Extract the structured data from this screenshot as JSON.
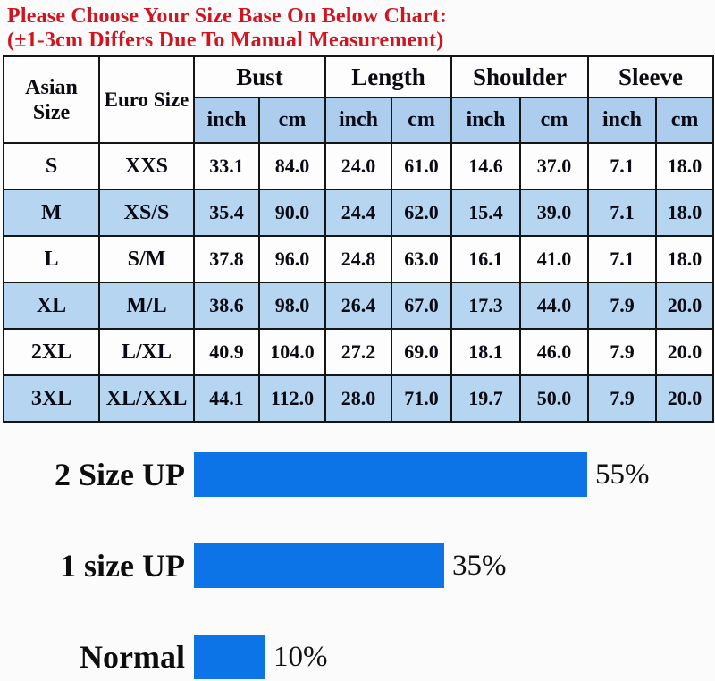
{
  "title": {
    "line1": "Please Choose Your Size Base On Below Chart:",
    "line2": "(±1-3cm Differs Due To Manual Measurement)",
    "color": "#d01520"
  },
  "table_header": {
    "corner1": "Asian Size",
    "corner2": "Euro Size",
    "groups": [
      "Bust",
      "Length",
      "Shoulder",
      "Sleeve"
    ],
    "unit_inch": "inch",
    "unit_cm": "cm"
  },
  "colors": {
    "title_red": "#d01520",
    "bar_blue": "#0c74e6",
    "table_alt_row_blue": "#b5d5f1",
    "table_unit_header_blue": "#accdee",
    "table_border": "#151515"
  },
  "chart_data": [
    {
      "type": "table",
      "columns": [
        "Asian Size",
        "Euro Size",
        "Bust inch",
        "Bust cm",
        "Length inch",
        "Length cm",
        "Shoulder inch",
        "Shoulder cm",
        "Sleeve inch",
        "Sleeve cm"
      ],
      "rows": [
        [
          "S",
          "XXS",
          "33.1",
          "84.0",
          "24.0",
          "61.0",
          "14.6",
          "37.0",
          "7.1",
          "18.0"
        ],
        [
          "M",
          "XS/S",
          "35.4",
          "90.0",
          "24.4",
          "62.0",
          "15.4",
          "39.0",
          "7.1",
          "18.0"
        ],
        [
          "L",
          "S/M",
          "37.8",
          "96.0",
          "24.8",
          "63.0",
          "16.1",
          "41.0",
          "7.1",
          "18.0"
        ],
        [
          "XL",
          "M/L",
          "38.6",
          "98.0",
          "26.4",
          "67.0",
          "17.3",
          "44.0",
          "7.9",
          "20.0"
        ],
        [
          "2XL",
          "L/XL",
          "40.9",
          "104.0",
          "27.2",
          "69.0",
          "18.1",
          "46.0",
          "7.9",
          "20.0"
        ],
        [
          "3XL",
          "XL/XXL",
          "44.1",
          "112.0",
          "28.0",
          "71.0",
          "19.7",
          "50.0",
          "7.9",
          "20.0"
        ]
      ]
    },
    {
      "type": "bar",
      "orientation": "horizontal",
      "categories": [
        "2 Size UP",
        "1 size UP",
        "Normal"
      ],
      "values": [
        55,
        35,
        10
      ],
      "value_labels": [
        "55%",
        "35%",
        "10%"
      ],
      "xlim": [
        0,
        100
      ],
      "grid": false,
      "legend": false,
      "bar_color": "#0c74e6"
    }
  ]
}
